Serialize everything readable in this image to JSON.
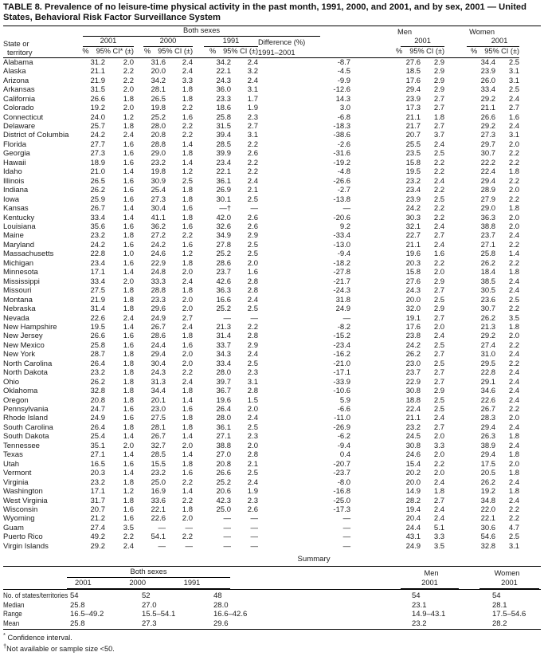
{
  "title": "TABLE 8. Prevalence of no leisure-time physical activity in the past month, 1991, 2000, and 2001, and by sex, 2001 — United States, Behavioral Risk Factor Surveillance System",
  "table": {
    "header": {
      "state_line1": "State or",
      "state_line2": "territory",
      "both_sexes": "Both sexes",
      "men": "Men",
      "women": "Women",
      "y2001": "2001",
      "y2000": "2000",
      "y1991": "1991",
      "diff1": "Difference (%)",
      "diff2": "1991–2001",
      "pct": "%",
      "ci_star": "95% CI* (±)",
      "ci": "95% CI (±)"
    },
    "rows": [
      [
        "Alabama",
        "31.2",
        "2.0",
        "31.6",
        "2.4",
        "34.2",
        "2.4",
        "-8.7",
        "27.6",
        "2.9",
        "34.4",
        "2.5"
      ],
      [
        "Alaska",
        "21.1",
        "2.2",
        "20.0",
        "2.4",
        "22.1",
        "3.2",
        "-4.5",
        "18.5",
        "2.9",
        "23.9",
        "3.1"
      ],
      [
        "Arizona",
        "21.9",
        "2.2",
        "34.2",
        "3.3",
        "24.3",
        "2.4",
        "-9.9",
        "17.6",
        "2.9",
        "26.0",
        "3.1"
      ],
      [
        "Arkansas",
        "31.5",
        "2.0",
        "28.1",
        "1.8",
        "36.0",
        "3.1",
        "-12.6",
        "29.4",
        "2.9",
        "33.4",
        "2.5"
      ],
      [
        "California",
        "26.6",
        "1.8",
        "26.5",
        "1.8",
        "23.3",
        "1.7",
        "14.3",
        "23.9",
        "2.7",
        "29.2",
        "2.4"
      ],
      [
        "Colorado",
        "19.2",
        "2.0",
        "19.8",
        "2.2",
        "18.6",
        "1.9",
        "3.0",
        "17.3",
        "2.7",
        "21.1",
        "2.7"
      ],
      [
        "Connecticut",
        "24.0",
        "1.2",
        "25.2",
        "1.6",
        "25.8",
        "2.3",
        "-6.8",
        "21.1",
        "1.8",
        "26.6",
        "1.6"
      ],
      [
        "Delaware",
        "25.7",
        "1.8",
        "28.0",
        "2.2",
        "31.5",
        "2.7",
        "-18.3",
        "21.7",
        "2.7",
        "29.2",
        "2.4"
      ],
      [
        "District of Columbia",
        "24.2",
        "2.4",
        "20.8",
        "2.2",
        "39.4",
        "3.1",
        "-38.6",
        "20.7",
        "3.7",
        "27.3",
        "3.1"
      ],
      [
        "Florida",
        "27.7",
        "1.6",
        "28.8",
        "1.4",
        "28.5",
        "2.2",
        "-2.6",
        "25.5",
        "2.4",
        "29.7",
        "2.0"
      ],
      [
        "Georgia",
        "27.3",
        "1.6",
        "29.0",
        "1.8",
        "39.9",
        "2.6",
        "-31.6",
        "23.5",
        "2.5",
        "30.7",
        "2.2"
      ],
      [
        "Hawaii",
        "18.9",
        "1.6",
        "23.2",
        "1.4",
        "23.4",
        "2.2",
        "-19.2",
        "15.8",
        "2.2",
        "22.2",
        "2.2"
      ],
      [
        "Idaho",
        "21.0",
        "1.4",
        "19.8",
        "1.2",
        "22.1",
        "2.2",
        "-4.8",
        "19.5",
        "2.2",
        "22.4",
        "1.8"
      ],
      [
        "Illinois",
        "26.5",
        "1.6",
        "30.9",
        "2.5",
        "36.1",
        "2.4",
        "-26.6",
        "23.2",
        "2.4",
        "29.4",
        "2.2"
      ],
      [
        "Indiana",
        "26.2",
        "1.6",
        "25.4",
        "1.8",
        "26.9",
        "2.1",
        "-2.7",
        "23.4",
        "2.2",
        "28.9",
        "2.0"
      ],
      [
        "Iowa",
        "25.9",
        "1.6",
        "27.3",
        "1.8",
        "30.1",
        "2.5",
        "-13.8",
        "23.9",
        "2.5",
        "27.9",
        "2.2"
      ],
      [
        "Kansas",
        "26.7",
        "1.4",
        "30.4",
        "1.6",
        "—†",
        "—",
        "—",
        "24.2",
        "2.2",
        "29.0",
        "1.8"
      ],
      [
        "Kentucky",
        "33.4",
        "1.4",
        "41.1",
        "1.8",
        "42.0",
        "2.6",
        "-20.6",
        "30.3",
        "2.2",
        "36.3",
        "2.0"
      ],
      [
        "Louisiana",
        "35.6",
        "1.6",
        "36.2",
        "1.6",
        "32.6",
        "2.6",
        "9.2",
        "32.1",
        "2.4",
        "38.8",
        "2.0"
      ],
      [
        "Maine",
        "23.2",
        "1.8",
        "27.2",
        "2.2",
        "34.9",
        "2.9",
        "-33.4",
        "22.7",
        "2.7",
        "23.7",
        "2.4"
      ],
      [
        "Maryland",
        "24.2",
        "1.6",
        "24.2",
        "1.6",
        "27.8",
        "2.5",
        "-13.0",
        "21.1",
        "2.4",
        "27.1",
        "2.2"
      ],
      [
        "Massachusetts",
        "22.8",
        "1.0",
        "24.6",
        "1.2",
        "25.2",
        "2.5",
        "-9.4",
        "19.6",
        "1.6",
        "25.8",
        "1.4"
      ],
      [
        "Michigan",
        "23.4",
        "1.6",
        "22.9",
        "1.8",
        "28.6",
        "2.0",
        "-18.2",
        "20.3",
        "2.2",
        "26.2",
        "2.2"
      ],
      [
        "Minnesota",
        "17.1",
        "1.4",
        "24.8",
        "2.0",
        "23.7",
        "1.6",
        "-27.8",
        "15.8",
        "2.0",
        "18.4",
        "1.8"
      ],
      [
        "Mississippi",
        "33.4",
        "2.0",
        "33.3",
        "2.4",
        "42.6",
        "2.8",
        "-21.7",
        "27.6",
        "2.9",
        "38.5",
        "2.4"
      ],
      [
        "Missouri",
        "27.5",
        "1.8",
        "28.8",
        "1.8",
        "36.3",
        "2.8",
        "-24.3",
        "24.3",
        "2.7",
        "30.5",
        "2.4"
      ],
      [
        "Montana",
        "21.9",
        "1.8",
        "23.3",
        "2.0",
        "16.6",
        "2.4",
        "31.8",
        "20.0",
        "2.5",
        "23.6",
        "2.5"
      ],
      [
        "Nebraska",
        "31.4",
        "1.8",
        "29.6",
        "2.0",
        "25.2",
        "2.5",
        "24.9",
        "32.0",
        "2.9",
        "30.7",
        "2.2"
      ],
      [
        "Nevada",
        "22.6",
        "2.4",
        "24.9",
        "2.7",
        "—",
        "—",
        "—",
        "19.1",
        "2.7",
        "26.2",
        "3.5"
      ],
      [
        "New Hampshire",
        "19.5",
        "1.4",
        "26.7",
        "2.4",
        "21.3",
        "2.2",
        "-8.2",
        "17.6",
        "2.0",
        "21.3",
        "1.8"
      ],
      [
        "New Jersey",
        "26.6",
        "1.6",
        "28.6",
        "1.8",
        "31.4",
        "2.8",
        "-15.2",
        "23.8",
        "2.4",
        "29.2",
        "2.0"
      ],
      [
        "New Mexico",
        "25.8",
        "1.6",
        "24.4",
        "1.6",
        "33.7",
        "2.9",
        "-23.4",
        "24.2",
        "2.5",
        "27.4",
        "2.2"
      ],
      [
        "New York",
        "28.7",
        "1.8",
        "29.4",
        "2.0",
        "34.3",
        "2.4",
        "-16.2",
        "26.2",
        "2.7",
        "31.0",
        "2.4"
      ],
      [
        "North Carolina",
        "26.4",
        "1.8",
        "30.4",
        "2.0",
        "33.4",
        "2.5",
        "-21.0",
        "23.0",
        "2.5",
        "29.5",
        "2.2"
      ],
      [
        "North Dakota",
        "23.2",
        "1.8",
        "24.3",
        "2.2",
        "28.0",
        "2.3",
        "-17.1",
        "23.7",
        "2.7",
        "22.8",
        "2.4"
      ],
      [
        "Ohio",
        "26.2",
        "1.8",
        "31.3",
        "2.4",
        "39.7",
        "3.1",
        "-33.9",
        "22.9",
        "2.7",
        "29.1",
        "2.4"
      ],
      [
        "Oklahoma",
        "32.8",
        "1.8",
        "34.4",
        "1.8",
        "36.7",
        "2.8",
        "-10.6",
        "30.8",
        "2.9",
        "34.6",
        "2.4"
      ],
      [
        "Oregon",
        "20.8",
        "1.8",
        "20.1",
        "1.4",
        "19.6",
        "1.5",
        "5.9",
        "18.8",
        "2.5",
        "22.6",
        "2.4"
      ],
      [
        "Pennsylvania",
        "24.7",
        "1.6",
        "23.0",
        "1.6",
        "26.4",
        "2.0",
        "-6.6",
        "22.4",
        "2.5",
        "26.7",
        "2.2"
      ],
      [
        "Rhode Island",
        "24.9",
        "1.6",
        "27.5",
        "1.8",
        "28.0",
        "2.4",
        "-11.0",
        "21.1",
        "2.4",
        "28.3",
        "2.0"
      ],
      [
        "South Carolina",
        "26.4",
        "1.8",
        "28.1",
        "1.8",
        "36.1",
        "2.5",
        "-26.9",
        "23.2",
        "2.7",
        "29.4",
        "2.4"
      ],
      [
        "South Dakota",
        "25.4",
        "1.4",
        "26.7",
        "1.4",
        "27.1",
        "2.3",
        "-6.2",
        "24.5",
        "2.0",
        "26.3",
        "1.8"
      ],
      [
        "Tennessee",
        "35.1",
        "2.0",
        "32.7",
        "2.0",
        "38.8",
        "2.0",
        "-9.4",
        "30.8",
        "3.3",
        "38.9",
        "2.4"
      ],
      [
        "Texas",
        "27.1",
        "1.4",
        "28.5",
        "1.4",
        "27.0",
        "2.8",
        "0.4",
        "24.6",
        "2.0",
        "29.4",
        "1.8"
      ],
      [
        "Utah",
        "16.5",
        "1.6",
        "15.5",
        "1.8",
        "20.8",
        "2.1",
        "-20.7",
        "15.4",
        "2.2",
        "17.5",
        "2.0"
      ],
      [
        "Vermont",
        "20.3",
        "1.4",
        "23.2",
        "1.6",
        "26.6",
        "2.5",
        "-23.7",
        "20.2",
        "2.0",
        "20.5",
        "1.8"
      ],
      [
        "Virginia",
        "23.2",
        "1.8",
        "25.0",
        "2.2",
        "25.2",
        "2.4",
        "-8.0",
        "20.0",
        "2.4",
        "26.2",
        "2.4"
      ],
      [
        "Washington",
        "17.1",
        "1.2",
        "16.9",
        "1.4",
        "20.6",
        "1.9",
        "-16.8",
        "14.9",
        "1.8",
        "19.2",
        "1.8"
      ],
      [
        "West Virginia",
        "31.7",
        "1.8",
        "33.6",
        "2.2",
        "42.3",
        "2.3",
        "-25.0",
        "28.2",
        "2.7",
        "34.8",
        "2.4"
      ],
      [
        "Wisconsin",
        "20.7",
        "1.6",
        "22.1",
        "1.8",
        "25.0",
        "2.6",
        "-17.3",
        "19.4",
        "2.4",
        "22.0",
        "2.2"
      ],
      [
        "Wyoming",
        "21.2",
        "1.6",
        "22.6",
        "2.0",
        "—",
        "—",
        "—",
        "20.4",
        "2.4",
        "22.1",
        "2.2"
      ],
      [
        "Guam",
        "27.4",
        "3.5",
        "—",
        "—",
        "—",
        "—",
        "—",
        "24.4",
        "5.1",
        "30.6",
        "4.7"
      ],
      [
        "Puerto Rico",
        "49.2",
        "2.2",
        "54.1",
        "2.2",
        "—",
        "—",
        "—",
        "43.1",
        "3.3",
        "54.6",
        "2.5"
      ],
      [
        "Virgin Islands",
        "29.2",
        "2.4",
        "—",
        "—",
        "—",
        "—",
        "—",
        "24.9",
        "3.5",
        "32.8",
        "3.1"
      ]
    ]
  },
  "summary": {
    "heading": "Summary",
    "header": {
      "both_sexes": "Both sexes",
      "men": "Men",
      "women": "Women",
      "y2001": "2001",
      "y2000": "2000",
      "y1991": "1991",
      "men_y": "2001",
      "women_y": "2001"
    },
    "rows": [
      [
        "No. of states/territories",
        "54",
        "52",
        "48",
        "54",
        "54"
      ],
      [
        "Median",
        "25.8",
        "27.0",
        "28.0",
        "23.1",
        "28.1"
      ],
      [
        "Range",
        "16.5–49.2",
        "15.5–54.1",
        "16.6–42.6",
        "14.9–43.1",
        "17.5–54.6"
      ],
      [
        "Mean",
        "25.8",
        "27.3",
        "29.6",
        "23.2",
        "28.2"
      ]
    ]
  },
  "footnotes": [
    {
      "marker": "*",
      "text": "Confidence interval."
    },
    {
      "marker": "†",
      "text": "Not available or sample size <50."
    }
  ]
}
